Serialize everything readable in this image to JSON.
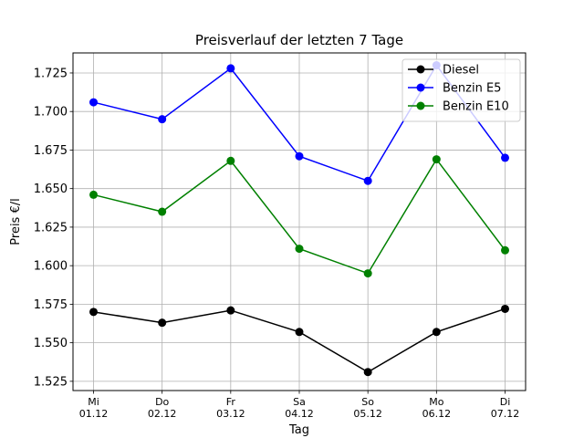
{
  "chart_data": {
    "type": "line",
    "title": "Preisverlauf der letzten 7 Tage",
    "xlabel": "Tag",
    "ylabel": "Preis €/l",
    "categories": [
      {
        "day": "Mi",
        "date": "01.12"
      },
      {
        "day": "Do",
        "date": "02.12"
      },
      {
        "day": "Fr",
        "date": "03.12"
      },
      {
        "day": "Sa",
        "date": "04.12"
      },
      {
        "day": "So",
        "date": "05.12"
      },
      {
        "day": "Mo",
        "date": "06.12"
      },
      {
        "day": "Di",
        "date": "07.12"
      }
    ],
    "ylim": [
      1.519,
      1.738
    ],
    "yticks": [
      "1.525",
      "1.550",
      "1.575",
      "1.600",
      "1.625",
      "1.650",
      "1.675",
      "1.700",
      "1.725"
    ],
    "grid": true,
    "legend_position": "top-right",
    "series": [
      {
        "name": "Diesel",
        "color": "#000000",
        "values": [
          1.57,
          1.563,
          1.571,
          1.557,
          1.531,
          1.557,
          1.572
        ]
      },
      {
        "name": "Benzin E5",
        "color": "#0000ff",
        "values": [
          1.706,
          1.695,
          1.728,
          1.671,
          1.655,
          1.73,
          1.67
        ]
      },
      {
        "name": "Benzin E10",
        "color": "#008000",
        "values": [
          1.646,
          1.635,
          1.668,
          1.611,
          1.595,
          1.669,
          1.61
        ]
      }
    ]
  }
}
